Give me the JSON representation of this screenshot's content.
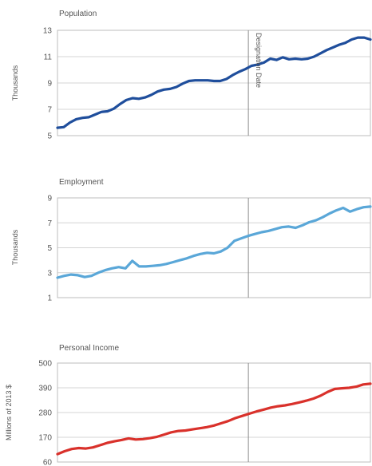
{
  "designation_label": "Designation Date",
  "designation_x": 0.61,
  "chart_data": [
    {
      "type": "line",
      "title": "Population",
      "ylabel": "Thousands",
      "xlabel": "",
      "ylim": [
        5,
        13
      ],
      "yticks": [
        "5",
        "7",
        "9",
        "11",
        "13"
      ],
      "grid": true,
      "series": [
        {
          "color": "#1f4e9c",
          "values": [
            5.6,
            5.65,
            6.0,
            6.25,
            6.35,
            6.4,
            6.6,
            6.8,
            6.85,
            7.05,
            7.4,
            7.7,
            7.85,
            7.8,
            7.9,
            8.1,
            8.35,
            8.5,
            8.55,
            8.7,
            8.95,
            9.15,
            9.2,
            9.2,
            9.2,
            9.15,
            9.15,
            9.3,
            9.6,
            9.85,
            10.05,
            10.3,
            10.4,
            10.55,
            10.85,
            10.75,
            10.95,
            10.8,
            10.85,
            10.8,
            10.85,
            11.0,
            11.25,
            11.5,
            11.7,
            11.9,
            12.05,
            12.3,
            12.45,
            12.45,
            12.3
          ]
        }
      ]
    },
    {
      "type": "line",
      "title": "Employment",
      "ylabel": "Thousands",
      "xlabel": "",
      "ylim": [
        1,
        9
      ],
      "yticks": [
        "1",
        "3",
        "5",
        "7",
        "9"
      ],
      "grid": true,
      "series": [
        {
          "color": "#5aa7d8",
          "values": [
            2.6,
            2.75,
            2.85,
            2.8,
            2.65,
            2.75,
            3.0,
            3.2,
            3.35,
            3.45,
            3.35,
            3.95,
            3.5,
            3.5,
            3.55,
            3.6,
            3.7,
            3.85,
            4.0,
            4.15,
            4.35,
            4.5,
            4.6,
            4.55,
            4.7,
            5.0,
            5.55,
            5.75,
            5.95,
            6.1,
            6.25,
            6.35,
            6.5,
            6.65,
            6.7,
            6.6,
            6.8,
            7.05,
            7.2,
            7.45,
            7.75,
            8.0,
            8.2,
            7.9,
            8.1,
            8.25,
            8.3
          ]
        }
      ]
    },
    {
      "type": "line",
      "title": "Personal Income",
      "ylabel": "Millions of 2013 $",
      "xlabel": "",
      "ylim": [
        60,
        500
      ],
      "yticks": [
        "60",
        "170",
        "280",
        "390",
        "500"
      ],
      "grid": true,
      "series": [
        {
          "color": "#d9312b",
          "values": [
            95,
            108,
            118,
            122,
            120,
            125,
            135,
            145,
            152,
            158,
            165,
            160,
            162,
            166,
            172,
            182,
            192,
            198,
            200,
            205,
            210,
            215,
            222,
            232,
            242,
            255,
            265,
            275,
            285,
            293,
            302,
            308,
            312,
            318,
            325,
            333,
            342,
            355,
            372,
            385,
            388,
            390,
            395,
            405,
            408
          ]
        }
      ]
    }
  ]
}
